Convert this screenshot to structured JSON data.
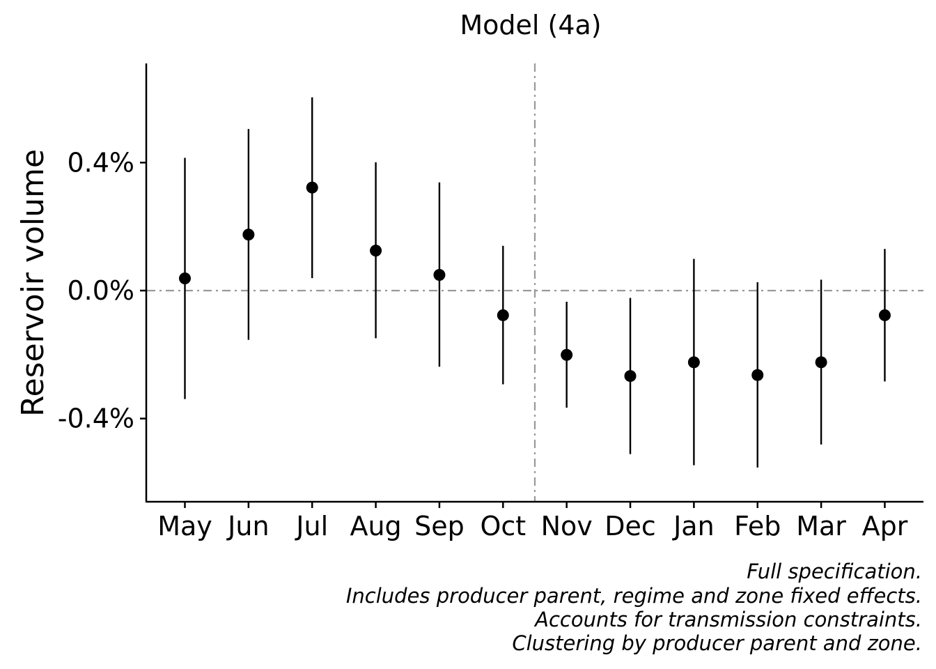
{
  "chart_data": {
    "type": "scatter",
    "title": "Model (4a)",
    "xlabel": "",
    "ylabel": "Reservoir volume",
    "categories": [
      "May",
      "Jun",
      "Jul",
      "Aug",
      "Sep",
      "Oct",
      "Nov",
      "Dec",
      "Jan",
      "Feb",
      "Mar",
      "Apr"
    ],
    "series": [
      {
        "estimate": [
          0.038,
          0.175,
          0.322,
          0.125,
          0.049,
          -0.077,
          -0.201,
          -0.267,
          -0.224,
          -0.264,
          -0.224,
          -0.077
        ],
        "lower": [
          -0.339,
          -0.154,
          0.039,
          -0.149,
          -0.238,
          -0.293,
          -0.366,
          -0.511,
          -0.546,
          -0.553,
          -0.481,
          -0.284
        ],
        "upper": [
          0.415,
          0.505,
          0.604,
          0.401,
          0.338,
          0.14,
          -0.035,
          -0.023,
          0.099,
          0.026,
          0.034,
          0.13
        ]
      }
    ],
    "ylim": [
      -0.66,
      0.71
    ],
    "y_ticks": [
      0.4,
      0.0,
      -0.4
    ],
    "y_tick_labels": [
      "0.4%",
      "0.0%",
      "-0.4%"
    ],
    "reference_lines": {
      "horizontal_at": 0.0,
      "vertical_between": [
        "Oct",
        "Nov"
      ],
      "style": "dash-dot",
      "color": "#999999"
    },
    "grid": false,
    "legend": "none",
    "caption": [
      "Full specification.",
      "Includes producer parent, regime and zone fixed effects.",
      "Accounts for transmission constraints.",
      "Clustering by producer parent and zone."
    ]
  }
}
